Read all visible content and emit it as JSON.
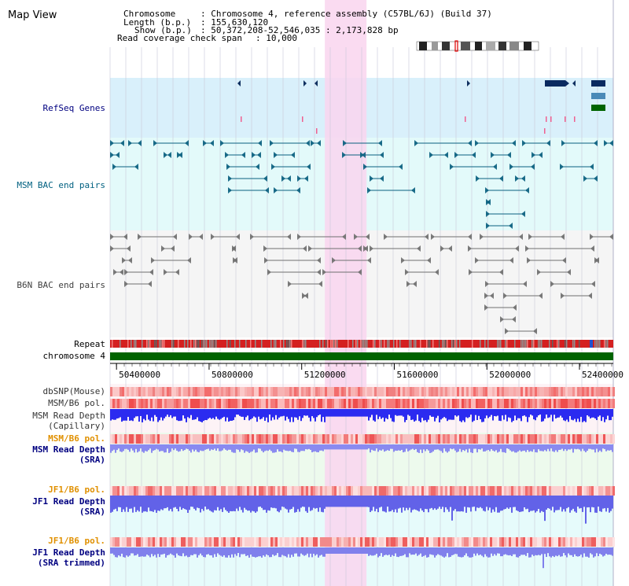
{
  "title": "Map View",
  "header": {
    "chromosome_key": "Chromosome",
    "chromosome_value": ": Chromosome 4, reference assembly (C57BL/6J) (Build 37)",
    "length_key": "Length (b.p.)",
    "length_value": ": 155,630,120",
    "show_key": "Show (b.p.)",
    "show_value": ": 50,372,208-52,546,035 : 2,173,828 bp",
    "coverage_key": "Read coverage check span",
    "coverage_value": ": 10,000"
  },
  "tracks": {
    "refseq": "RefSeq Genes",
    "msm_bac": "MSM BAC end pairs",
    "b6n_bac": "B6N BAC end pairs",
    "repeat": "Repeat",
    "chromosome": "chromosome 4",
    "dbsnp": "dbSNP(Mouse)",
    "msm_b6_pol_1": "MSM/B6 pol.",
    "msm_read_depth_cap_1": "MSM Read Depth",
    "msm_read_depth_cap_2": "(Capillary)",
    "msm_b6_pol_2": "MSM/B6 pol.",
    "msm_read_depth_sra_1": "MSM Read Depth",
    "msm_read_depth_sra_2": "(SRA)",
    "jf1_b6_pol_1": "JF1/B6 pol.",
    "jf1_read_depth_sra_1": "JF1 Read Depth",
    "jf1_read_depth_sra_2": "(SRA)",
    "jf1_b6_pol_2": "JF1/B6 pol.",
    "jf1_read_depth_trim_1": "JF1 Read Depth",
    "jf1_read_depth_trim_2": "(SRA trimmed)"
  },
  "axis": {
    "ticks": [
      "50400000",
      "50800000",
      "51200000",
      "51600000",
      "52000000",
      "52400000"
    ],
    "view_start_bp": 50372208,
    "view_end_bp": 52546035,
    "highlight_start_bp": 51300000,
    "highlight_end_bp": 51480000
  },
  "colors": {
    "label_blue": "#000080",
    "label_teal": "#006080",
    "label_gray": "#404040",
    "label_orange": "#e09000",
    "refseq_bg": "#d9f0fb",
    "msm_bg": "#e3fafa",
    "b6n_bg": "#f5f5f5",
    "highlight": "#f9d5ef",
    "chromosome_bar": "#006400",
    "depth_blue": "#2b2bf0"
  }
}
